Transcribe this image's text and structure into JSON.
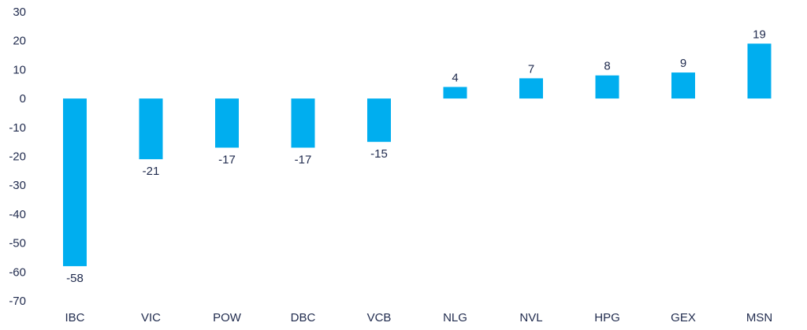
{
  "chart_data": {
    "type": "bar",
    "title": "",
    "xlabel": "",
    "ylabel": "",
    "categories": [
      "IBC",
      "VIC",
      "POW",
      "DBC",
      "VCB",
      "NLG",
      "NVL",
      "HPG",
      "GEX",
      "MSN"
    ],
    "values": [
      -58,
      -21,
      -17,
      -17,
      -15,
      4,
      7,
      8,
      9,
      19
    ],
    "data_labels": [
      "-58",
      "-21",
      "-17",
      "-17",
      "-15",
      "4",
      "7",
      "8",
      "9",
      "19"
    ],
    "ylim": [
      -70,
      30
    ],
    "yticks": [
      30,
      20,
      10,
      0,
      -10,
      -20,
      -30,
      -40,
      -50,
      -60,
      -70
    ],
    "ytick_labels": [
      "30",
      "20",
      "10",
      "0",
      "-10",
      "-20",
      "-30",
      "-40",
      "-50",
      "-60",
      "-70"
    ],
    "grid": false,
    "legend": "none",
    "bar_color": "#00AEEF",
    "text_color": "#1F2A4D"
  }
}
